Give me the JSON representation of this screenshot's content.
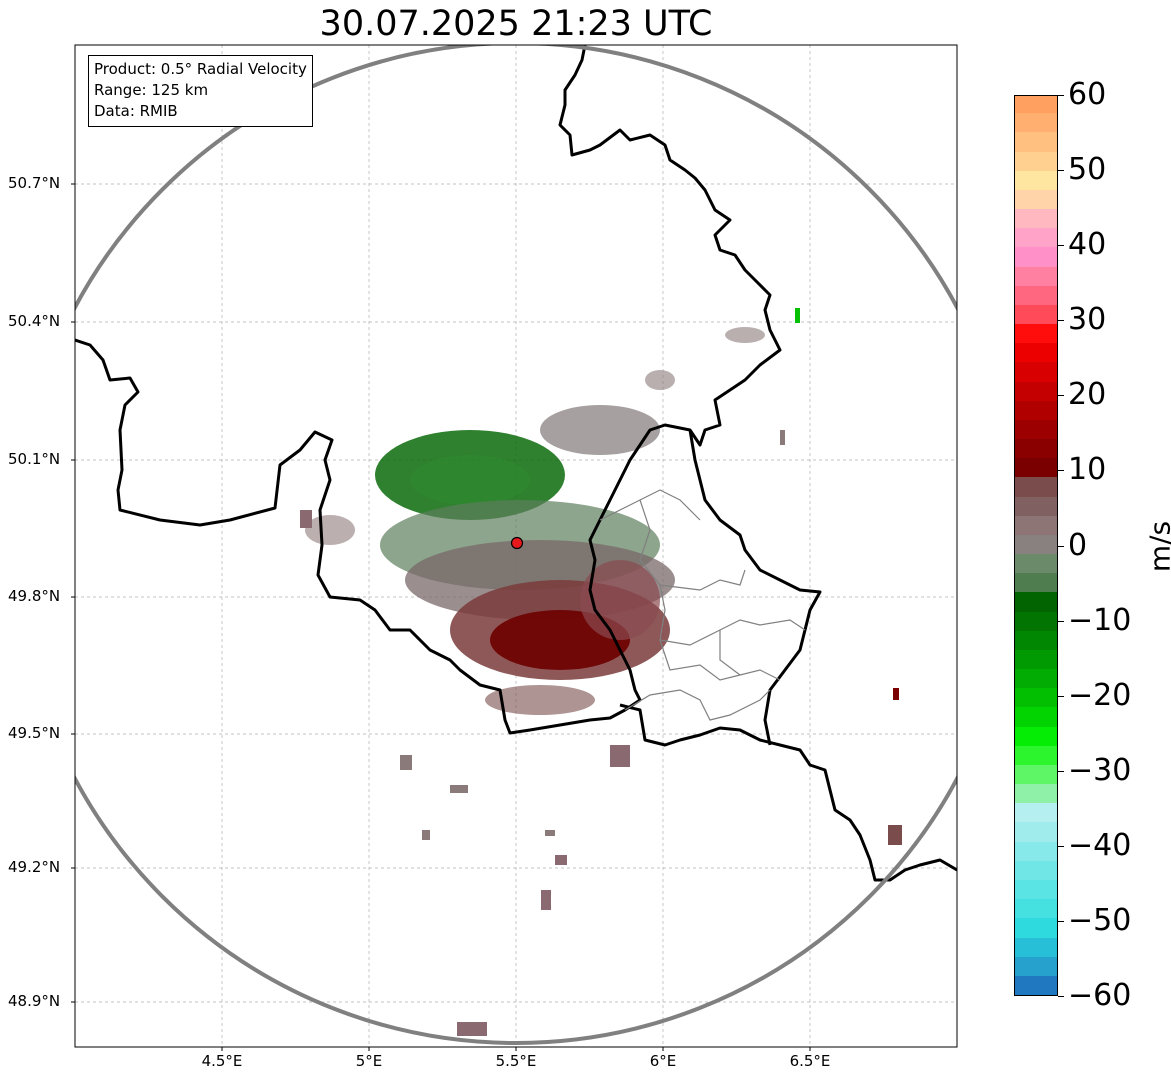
{
  "title": "30.07.2025 21:23 UTC",
  "info_box": {
    "product": "Product: 0.5° Radial Velocity",
    "range": "Range: 125 km",
    "data": "Data: RMIB"
  },
  "map": {
    "lat_labels": [
      "50.7°N",
      "50.4°N",
      "50.1°N",
      "49.8°N",
      "49.5°N",
      "49.2°N",
      "48.9°N"
    ],
    "lon_labels": [
      "4.5°E",
      "5°E",
      "5.5°E",
      "6°E",
      "6.5°E"
    ],
    "radar_site_color": "#e8191c",
    "range_ring_color": "#808080",
    "border_color": "#000000",
    "regional_border_color": "#808080"
  },
  "colorbar": {
    "unit": "m/s",
    "ticks": [
      "60",
      "50",
      "40",
      "30",
      "20",
      "10",
      "0",
      "−10",
      "−20",
      "−30",
      "−40",
      "−50",
      "−60"
    ],
    "range": [
      -60,
      60
    ],
    "colors_bottom_to_top": [
      "#1f78c0",
      "#26a0cc",
      "#27bfd8",
      "#2fdadf",
      "#45e0e0",
      "#5ae4e4",
      "#71e6e6",
      "#88e9ea",
      "#a0ecec",
      "#b6efef",
      "#8ff0a8",
      "#5ef566",
      "#2df52d",
      "#05ec05",
      "#02d402",
      "#02bf02",
      "#02ac02",
      "#029a02",
      "#028702",
      "#027402",
      "#016401",
      "#4f7d4f",
      "#6a8a6a",
      "#898080",
      "#8e7575",
      "#806060",
      "#7a4c4c",
      "#7a0000",
      "#8a0000",
      "#9c0000",
      "#b00000",
      "#c40000",
      "#d80000",
      "#ec0000",
      "#ff0c0c",
      "#ff4a5a",
      "#ff6680",
      "#ff80a0",
      "#ff90c8",
      "#ffa4c8",
      "#ffb8c0",
      "#ffd4a8",
      "#ffe6a0",
      "#ffd090",
      "#ffc080",
      "#ffb070",
      "#ffa060"
    ]
  },
  "colors": {
    "approaching_peak": "#006400",
    "receding_peak": "#7a0000",
    "ground_clutter": "#808080"
  }
}
